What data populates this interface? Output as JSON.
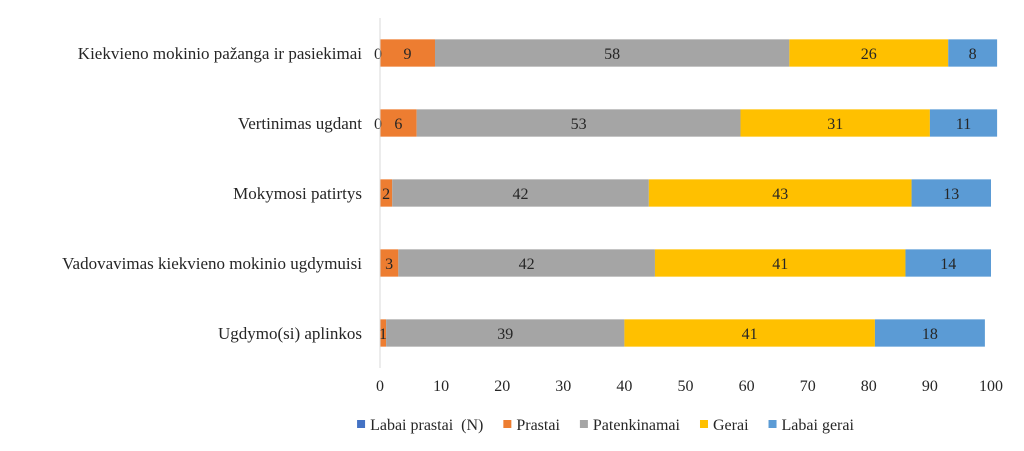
{
  "chart_data": {
    "type": "bar",
    "orientation": "horizontal",
    "stacked": true,
    "categories": [
      "Kiekvieno mokinio pažanga ir pasiekimai",
      "Vertinimas ugdant",
      "Mokymosi patirtys",
      "Vadovavimas kiekvieno mokinio ugdymuisi",
      "Ugdymo(si) aplinkos"
    ],
    "series": [
      {
        "name": "Labai prastai  (N)",
        "color": "#4472C4",
        "values": [
          0,
          0,
          0,
          0,
          0
        ],
        "labels": [
          "0",
          "0",
          "",
          "",
          ""
        ]
      },
      {
        "name": "Prastai",
        "color": "#ED7D31",
        "values": [
          9,
          6,
          2,
          3,
          1
        ],
        "labels": [
          "9",
          "6",
          "2",
          "3",
          "1"
        ]
      },
      {
        "name": "Patenkinamai",
        "color": "#A5A5A5",
        "values": [
          58,
          53,
          42,
          42,
          39
        ],
        "labels": [
          "58",
          "53",
          "42",
          "42",
          "39"
        ]
      },
      {
        "name": "Gerai",
        "color": "#FFC000",
        "values": [
          26,
          31,
          43,
          41,
          41
        ],
        "labels": [
          "26",
          "31",
          "43",
          "41",
          "41"
        ]
      },
      {
        "name": "Labai gerai",
        "color": "#5B9BD5",
        "values": [
          8,
          11,
          13,
          14,
          18
        ],
        "labels": [
          "8",
          "11",
          "13",
          "14",
          "18"
        ]
      }
    ],
    "xlim": [
      0,
      100
    ],
    "xticks": [
      "0",
      "10",
      "20",
      "30",
      "40",
      "50",
      "60",
      "70",
      "80",
      "90",
      "100"
    ],
    "legend_position": "bottom",
    "grid": false
  }
}
